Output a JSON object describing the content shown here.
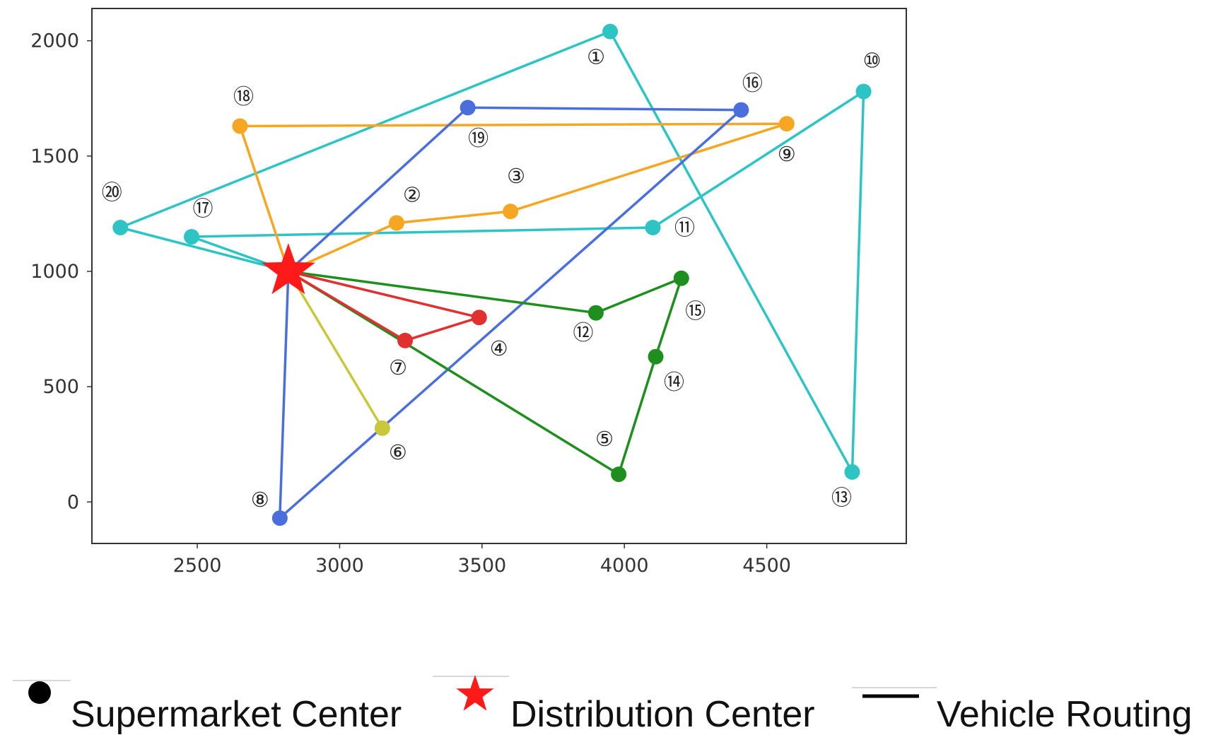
{
  "chart_data": {
    "type": "scatter",
    "xlim": [
      2130,
      4990
    ],
    "ylim": [
      -180,
      2140
    ],
    "x_ticks": [
      2500,
      3000,
      3500,
      4000,
      4500
    ],
    "y_ticks": [
      0,
      500,
      1000,
      1500,
      2000
    ],
    "x_tick_labels": [
      "2500",
      "3000",
      "3500",
      "4000",
      "4500"
    ],
    "y_tick_labels": [
      "0",
      "500",
      "1000",
      "1500",
      "2000"
    ],
    "grid": false,
    "depot": {
      "x": 2820,
      "y": 1000,
      "color": "#ff1a1a"
    },
    "nodes": [
      {
        "id": "1",
        "label": "①",
        "x": 3950,
        "y": 2040
      },
      {
        "id": "2",
        "label": "②",
        "x": 3200,
        "y": 1210
      },
      {
        "id": "3",
        "label": "③",
        "x": 3600,
        "y": 1260
      },
      {
        "id": "4",
        "label": "④",
        "x": 3490,
        "y": 800
      },
      {
        "id": "5",
        "label": "⑤",
        "x": 3980,
        "y": 120
      },
      {
        "id": "6",
        "label": "⑥",
        "x": 3150,
        "y": 320
      },
      {
        "id": "7",
        "label": "⑦",
        "x": 3230,
        "y": 700
      },
      {
        "id": "8",
        "label": "⑧",
        "x": 2790,
        "y": -70
      },
      {
        "id": "9",
        "label": "⑨",
        "x": 4570,
        "y": 1640
      },
      {
        "id": "10",
        "label": "⑩",
        "x": 4840,
        "y": 1780
      },
      {
        "id": "11",
        "label": "⑪",
        "x": 4100,
        "y": 1190
      },
      {
        "id": "12",
        "label": "⑫",
        "x": 3900,
        "y": 820
      },
      {
        "id": "13",
        "label": "⑬",
        "x": 4800,
        "y": 130
      },
      {
        "id": "14",
        "label": "⑭",
        "x": 4110,
        "y": 630
      },
      {
        "id": "15",
        "label": "⑮",
        "x": 4200,
        "y": 970
      },
      {
        "id": "16",
        "label": "⑯",
        "x": 4410,
        "y": 1700
      },
      {
        "id": "17",
        "label": "⑰",
        "x": 2480,
        "y": 1150
      },
      {
        "id": "18",
        "label": "⑱",
        "x": 2650,
        "y": 1630
      },
      {
        "id": "19",
        "label": "⑲",
        "x": 3450,
        "y": 1710
      },
      {
        "id": "20",
        "label": "⑳",
        "x": 2230,
        "y": 1190
      }
    ],
    "routes": [
      {
        "color": "#2ec4c4",
        "stops": [
          "depot",
          "17",
          "11",
          "10",
          "13",
          "1",
          "20",
          "depot"
        ]
      },
      {
        "color": "#f5a623",
        "stops": [
          "depot",
          "18",
          "9",
          "3",
          "2",
          "depot"
        ]
      },
      {
        "color": "#4a6fdc",
        "stops": [
          "depot",
          "19",
          "16",
          "8",
          "depot"
        ]
      },
      {
        "color": "#1e8f1e",
        "stops": [
          "depot",
          "12",
          "15",
          "14",
          "5",
          "depot"
        ]
      },
      {
        "color": "#e03030",
        "stops": [
          "depot",
          "4",
          "7",
          "depot"
        ]
      },
      {
        "color": "#c8c83a",
        "stops": [
          "depot",
          "6"
        ]
      }
    ],
    "legend": {
      "placement": "bottom",
      "entries": [
        {
          "marker": "dot",
          "label": "Supermarket Center",
          "color": "#000000"
        },
        {
          "marker": "star",
          "label": "Distribution Center",
          "color": "#ff1a1a"
        },
        {
          "marker": "line",
          "label": "Vehicle Routing",
          "color": "#000000"
        }
      ]
    }
  }
}
